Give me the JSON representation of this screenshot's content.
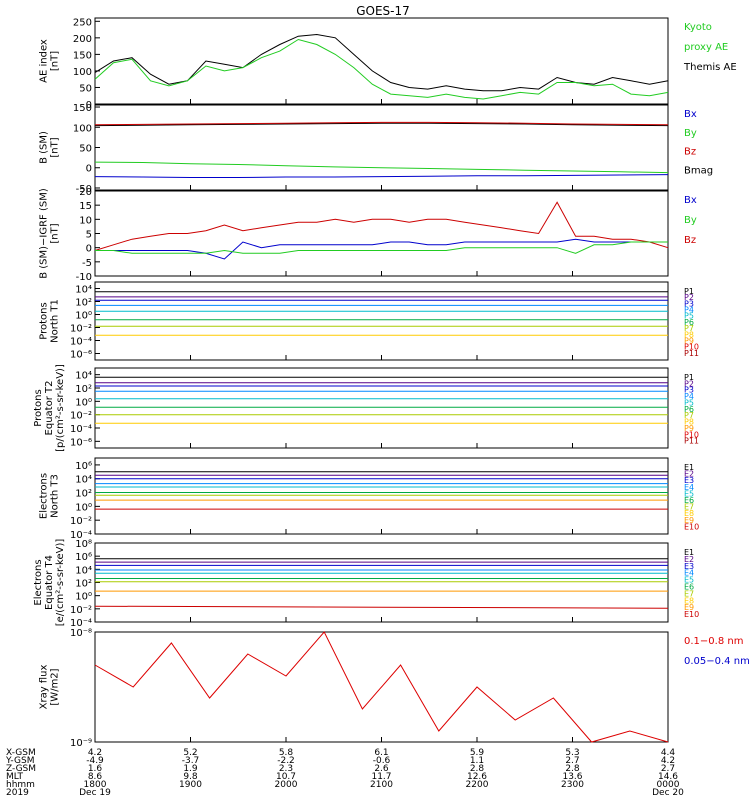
{
  "title": "GOES-17",
  "panels": [
    {
      "id": "ae",
      "ylabel": [
        "AE index",
        "[nT]"
      ],
      "yticks": [
        "250",
        "200",
        "150",
        "100",
        "50",
        "0"
      ],
      "tickvals": [
        250,
        200,
        150,
        100,
        50,
        0
      ],
      "ylim": [
        0,
        260
      ],
      "scale": "linear",
      "legend": [
        {
          "text": "Kyoto",
          "color": "#22cc22"
        },
        {
          "text": "proxy AE",
          "color": "#22cc22"
        },
        {
          "text": "Themis AE",
          "color": "#000000"
        }
      ]
    },
    {
      "id": "bsm",
      "ylabel": [
        "B (SM)",
        "[nT]"
      ],
      "yticks": [
        "150",
        "100",
        "50",
        "0",
        "-50"
      ],
      "tickvals": [
        150,
        100,
        50,
        0,
        -50
      ],
      "ylim": [
        -55,
        155
      ],
      "scale": "linear",
      "legend": [
        {
          "text": "Bx",
          "color": "#0000cc"
        },
        {
          "text": "By",
          "color": "#22cc22"
        },
        {
          "text": "Bz",
          "color": "#cc0000"
        },
        {
          "text": "Bmag",
          "color": "#000000"
        }
      ]
    },
    {
      "id": "bigrf",
      "ylabel": [
        "B (SM)−IGRF (SM)",
        "[nT]"
      ],
      "yticks": [
        "20",
        "15",
        "10",
        "5",
        "0",
        "-5",
        "-10"
      ],
      "tickvals": [
        20,
        15,
        10,
        5,
        0,
        -5,
        -10
      ],
      "ylim": [
        -10,
        20
      ],
      "scale": "linear",
      "legend": [
        {
          "text": "Bx",
          "color": "#0000cc"
        },
        {
          "text": "By",
          "color": "#22cc22"
        },
        {
          "text": "Bz",
          "color": "#cc0000"
        }
      ]
    },
    {
      "id": "pn",
      "ylabel": [
        "Protons",
        "North T1"
      ],
      "yticks": [
        "10⁴",
        "10²",
        "10⁰",
        "10⁻²",
        "10⁻⁴",
        "10⁻⁶"
      ],
      "tickvals": [
        4,
        2,
        0,
        -2,
        -4,
        -6
      ],
      "ylim": [
        -7,
        5
      ],
      "scale": "log",
      "legend": [
        {
          "text": "P1",
          "color": "#000000"
        },
        {
          "text": "P2",
          "color": "#550088"
        },
        {
          "text": "P3",
          "color": "#0000cc"
        },
        {
          "text": "P4",
          "color": "#0088ff"
        },
        {
          "text": "P5",
          "color": "#00bbcc"
        },
        {
          "text": "P6",
          "color": "#00aa44"
        },
        {
          "text": "P7",
          "color": "#aacc00"
        },
        {
          "text": "P8",
          "color": "#ffcc00"
        },
        {
          "text": "P9",
          "color": "#ff9900"
        },
        {
          "text": "P10",
          "color": "#dd0000"
        },
        {
          "text": "P11",
          "color": "#aa0000"
        }
      ]
    },
    {
      "id": "pe",
      "ylabel": [
        "Protons",
        "Equator T2",
        "[p/(cm²-s-sr-keV)]"
      ],
      "yticks": [
        "10⁴",
        "10²",
        "10⁰",
        "10⁻²",
        "10⁻⁴",
        "10⁻⁶"
      ],
      "tickvals": [
        4,
        2,
        0,
        -2,
        -4,
        -6
      ],
      "ylim": [
        -7,
        5
      ],
      "scale": "log",
      "legend": [
        {
          "text": "P1",
          "color": "#000000"
        },
        {
          "text": "P2",
          "color": "#550088"
        },
        {
          "text": "P3",
          "color": "#0000cc"
        },
        {
          "text": "P4",
          "color": "#0088ff"
        },
        {
          "text": "P5",
          "color": "#00bbcc"
        },
        {
          "text": "P6",
          "color": "#00aa44"
        },
        {
          "text": "P7",
          "color": "#aacc00"
        },
        {
          "text": "P8",
          "color": "#ffcc00"
        },
        {
          "text": "P9",
          "color": "#ff9900"
        },
        {
          "text": "P10",
          "color": "#dd0000"
        },
        {
          "text": "P11",
          "color": "#aa0000"
        }
      ]
    },
    {
      "id": "en",
      "ylabel": [
        "Electrons",
        "North T3"
      ],
      "yticks": [
        "10⁶",
        "10⁴",
        "10²",
        "10⁰",
        "10⁻²",
        "10⁻⁴"
      ],
      "tickvals": [
        6,
        4,
        2,
        0,
        -2,
        -4
      ],
      "ylim": [
        -4,
        7
      ],
      "scale": "log",
      "legend": [
        {
          "text": "E1",
          "color": "#000000"
        },
        {
          "text": "E2",
          "color": "#550088"
        },
        {
          "text": "E3",
          "color": "#0000cc"
        },
        {
          "text": "E4",
          "color": "#0088ff"
        },
        {
          "text": "E5",
          "color": "#00bbcc"
        },
        {
          "text": "E6",
          "color": "#00aa44"
        },
        {
          "text": "E7",
          "color": "#aacc00"
        },
        {
          "text": "E8",
          "color": "#ffcc00"
        },
        {
          "text": "E9",
          "color": "#ff9900"
        },
        {
          "text": "E10",
          "color": "#cc0000"
        }
      ]
    },
    {
      "id": "ee",
      "ylabel": [
        "Electrons",
        "Equator T4",
        "[e/(cm²-s-sr-keV)]"
      ],
      "yticks": [
        "10⁸",
        "10⁶",
        "10⁴",
        "10²",
        "10⁰",
        "10⁻²",
        "10⁻⁴"
      ],
      "tickvals": [
        8,
        6,
        4,
        2,
        0,
        -2,
        -4
      ],
      "ylim": [
        -4,
        8
      ],
      "scale": "log",
      "legend": [
        {
          "text": "E1",
          "color": "#000000"
        },
        {
          "text": "E2",
          "color": "#550088"
        },
        {
          "text": "E3",
          "color": "#0000cc"
        },
        {
          "text": "E4",
          "color": "#0088ff"
        },
        {
          "text": "E5",
          "color": "#00bbcc"
        },
        {
          "text": "E6",
          "color": "#00aa44"
        },
        {
          "text": "E7",
          "color": "#aacc00"
        },
        {
          "text": "E8",
          "color": "#ffcc00"
        },
        {
          "text": "E9",
          "color": "#ff9900"
        },
        {
          "text": "E10",
          "color": "#cc0000"
        }
      ]
    },
    {
      "id": "xray",
      "ylabel": [
        "Xray flux",
        "[W/m2]"
      ],
      "yticks": [
        "10⁻⁸",
        "10⁻⁹"
      ],
      "tickvals": [
        -8,
        -9
      ],
      "ylim": [
        -9,
        -8
      ],
      "scale": "log",
      "legend": [
        {
          "text": "0.1−0.8 nm",
          "color": "#dd0000"
        },
        {
          "text": "0.05−0.4 nm",
          "color": "#0000cc"
        }
      ]
    }
  ],
  "orbit_table": {
    "row_labels": [
      "X-GSM",
      "Y-GSM",
      "Z-GSM",
      "MLT",
      "hhmm",
      "2019"
    ],
    "columns": [
      [
        "4.2",
        "-4.9",
        "1.6",
        "8.6",
        "1800",
        "Dec 19"
      ],
      [
        "5.2",
        "-3.7",
        "1.9",
        "9.8",
        "1900",
        ""
      ],
      [
        "5.8",
        "-2.2",
        "2.3",
        "10.7",
        "2000",
        ""
      ],
      [
        "6.1",
        "-0.6",
        "2.6",
        "11.7",
        "2100",
        ""
      ],
      [
        "5.9",
        "1.1",
        "2.8",
        "12.6",
        "2200",
        ""
      ],
      [
        "5.3",
        "2.7",
        "2.8",
        "13.6",
        "2300",
        ""
      ],
      [
        "4.4",
        "4.2",
        "2.7",
        "14.6",
        "0000",
        "Dec 20"
      ]
    ]
  },
  "chart_data": {
    "type": "line",
    "title": "GOES-17",
    "x_label_times": [
      "1800",
      "1900",
      "2000",
      "2100",
      "2200",
      "2300",
      "0000"
    ],
    "series": [
      {
        "panel": "ae",
        "name": "Themis AE",
        "color": "#000000",
        "values": [
          95,
          130,
          140,
          90,
          60,
          70,
          130,
          120,
          110,
          150,
          180,
          205,
          210,
          200,
          150,
          100,
          65,
          50,
          45,
          55,
          45,
          40,
          40,
          50,
          45,
          80,
          65,
          60,
          80,
          70,
          60,
          70
        ]
      },
      {
        "panel": "ae",
        "name": "Kyoto proxy AE",
        "color": "#22cc22",
        "values": [
          75,
          125,
          135,
          70,
          55,
          70,
          115,
          100,
          110,
          140,
          160,
          195,
          180,
          150,
          110,
          60,
          30,
          25,
          20,
          30,
          20,
          15,
          25,
          35,
          30,
          65,
          65,
          55,
          60,
          30,
          25,
          35
        ]
      },
      {
        "panel": "bsm",
        "name": "Bmag",
        "color": "#000000",
        "values": [
          104,
          105,
          106,
          107,
          108,
          109,
          110,
          110,
          109,
          108,
          106,
          105,
          104
        ]
      },
      {
        "panel": "bsm",
        "name": "Bz",
        "color": "#cc0000",
        "values": [
          106,
          107,
          108,
          109,
          110,
          111,
          112,
          112,
          111,
          110,
          108,
          107,
          106
        ]
      },
      {
        "panel": "bsm",
        "name": "By",
        "color": "#22cc22",
        "values": [
          14,
          13,
          10,
          8,
          5,
          2,
          0,
          -2,
          -4,
          -6,
          -8,
          -10,
          -12
        ]
      },
      {
        "panel": "bsm",
        "name": "Bx",
        "color": "#0000cc",
        "values": [
          -22,
          -23,
          -24,
          -24,
          -23,
          -23,
          -22,
          -21,
          -20,
          -20,
          -19,
          -18,
          -17
        ]
      },
      {
        "panel": "bigrf",
        "name": "Bz",
        "color": "#cc0000",
        "values": [
          -1,
          1,
          3,
          4,
          5,
          5,
          6,
          8,
          6,
          7,
          8,
          9,
          9,
          10,
          9,
          10,
          10,
          9,
          10,
          10,
          9,
          8,
          7,
          6,
          5,
          16,
          4,
          4,
          3,
          3,
          2,
          0
        ]
      },
      {
        "panel": "bigrf",
        "name": "Bx",
        "color": "#0000cc",
        "values": [
          -1,
          -1,
          -1,
          -1,
          -1,
          -1,
          -2,
          -4,
          2,
          0,
          1,
          1,
          1,
          1,
          1,
          1,
          2,
          2,
          1,
          1,
          2,
          2,
          2,
          2,
          2,
          2,
          3,
          2,
          2,
          2,
          2,
          2
        ]
      },
      {
        "panel": "bigrf",
        "name": "By",
        "color": "#22cc22",
        "values": [
          -1,
          -1,
          -2,
          -2,
          -2,
          -2,
          -2,
          -1,
          -2,
          -2,
          -2,
          -1,
          -1,
          -1,
          -1,
          -1,
          -1,
          -1,
          -1,
          -1,
          0,
          0,
          0,
          0,
          0,
          0,
          -2,
          1,
          1,
          2,
          2,
          2
        ]
      },
      {
        "panel": "pn",
        "name": "P1",
        "color": "#000000",
        "values": [
          3.5,
          3.5
        ]
      },
      {
        "panel": "pn",
        "name": "P2",
        "color": "#550088",
        "values": [
          2.7,
          2.7
        ]
      },
      {
        "panel": "pn",
        "name": "P3",
        "color": "#0000cc",
        "values": [
          2.2,
          2.2
        ]
      },
      {
        "panel": "pn",
        "name": "P4",
        "color": "#0088ff",
        "values": [
          1.4,
          1.4
        ]
      },
      {
        "panel": "pn",
        "name": "P5",
        "color": "#00bbcc",
        "values": [
          0.5,
          0.5
        ]
      },
      {
        "panel": "pn",
        "name": "P6",
        "color": "#00aa44",
        "values": [
          -0.8,
          -0.8
        ]
      },
      {
        "panel": "pn",
        "name": "P7",
        "color": "#aacc00",
        "values": [
          -1.8,
          -1.8
        ]
      },
      {
        "panel": "pn",
        "name": "P8",
        "color": "#ffcc00",
        "values": [
          -3.2,
          -3.2
        ]
      },
      {
        "panel": "pe",
        "name": "P1",
        "color": "#000000",
        "values": [
          3.6,
          3.6
        ]
      },
      {
        "panel": "pe",
        "name": "P2",
        "color": "#550088",
        "values": [
          2.8,
          2.8
        ]
      },
      {
        "panel": "pe",
        "name": "P3",
        "color": "#0000cc",
        "values": [
          2.3,
          2.3
        ]
      },
      {
        "panel": "pe",
        "name": "P4",
        "color": "#0088ff",
        "values": [
          1.5,
          1.5
        ]
      },
      {
        "panel": "pe",
        "name": "P5",
        "color": "#00bbcc",
        "values": [
          0.4,
          0.4
        ]
      },
      {
        "panel": "pe",
        "name": "P6",
        "color": "#00aa44",
        "values": [
          -0.9,
          -0.9
        ]
      },
      {
        "panel": "pe",
        "name": "P7",
        "color": "#aacc00",
        "values": [
          -2.0,
          -2.0
        ]
      },
      {
        "panel": "pe",
        "name": "P8",
        "color": "#ffcc00",
        "values": [
          -3.3,
          -3.3
        ]
      },
      {
        "panel": "en",
        "name": "E1",
        "color": "#000000",
        "values": [
          5.0,
          5.0
        ]
      },
      {
        "panel": "en",
        "name": "E2",
        "color": "#550088",
        "values": [
          4.5,
          4.5
        ]
      },
      {
        "panel": "en",
        "name": "E3",
        "color": "#0000cc",
        "values": [
          4.0,
          4.0
        ]
      },
      {
        "panel": "en",
        "name": "E4",
        "color": "#0088ff",
        "values": [
          3.3,
          3.3
        ]
      },
      {
        "panel": "en",
        "name": "E5",
        "color": "#00bbcc",
        "values": [
          2.8,
          2.8
        ]
      },
      {
        "panel": "en",
        "name": "E6",
        "color": "#00aa44",
        "values": [
          2.0,
          2.0
        ]
      },
      {
        "panel": "en",
        "name": "E7",
        "color": "#aacc00",
        "values": [
          1.6,
          1.6
        ]
      },
      {
        "panel": "en",
        "name": "E8",
        "color": "#ff9900",
        "values": [
          0.9,
          0.9
        ]
      },
      {
        "panel": "en",
        "name": "E9",
        "color": "#cc0000",
        "values": [
          -0.4,
          -0.4
        ]
      },
      {
        "panel": "ee",
        "name": "E1",
        "color": "#000000",
        "values": [
          5.6,
          5.6
        ]
      },
      {
        "panel": "ee",
        "name": "E2",
        "color": "#550088",
        "values": [
          5.1,
          5.1
        ]
      },
      {
        "panel": "ee",
        "name": "E3",
        "color": "#0000cc",
        "values": [
          4.6,
          4.6
        ]
      },
      {
        "panel": "ee",
        "name": "E4",
        "color": "#0088ff",
        "values": [
          3.9,
          3.9
        ]
      },
      {
        "panel": "ee",
        "name": "E5",
        "color": "#00bbcc",
        "values": [
          3.4,
          3.4
        ]
      },
      {
        "panel": "ee",
        "name": "E6",
        "color": "#00aa44",
        "values": [
          2.6,
          2.6
        ]
      },
      {
        "panel": "ee",
        "name": "E7",
        "color": "#aacc00",
        "values": [
          2.1,
          2.1
        ]
      },
      {
        "panel": "ee",
        "name": "E8",
        "color": "#ff9900",
        "values": [
          0.7,
          0.7
        ]
      },
      {
        "panel": "ee",
        "name": "E9",
        "color": "#cc0000",
        "values": [
          -1.6,
          -1.9
        ]
      },
      {
        "panel": "xray",
        "name": "0.1−0.8 nm",
        "color": "#dd0000",
        "values": [
          -8.3,
          -8.5,
          -8.1,
          -8.6,
          -8.2,
          -8.4,
          -8.0,
          -8.7,
          -8.3,
          -8.9,
          -8.5,
          -8.8,
          -8.6,
          -9.0,
          -8.9,
          -9.0
        ]
      }
    ]
  }
}
